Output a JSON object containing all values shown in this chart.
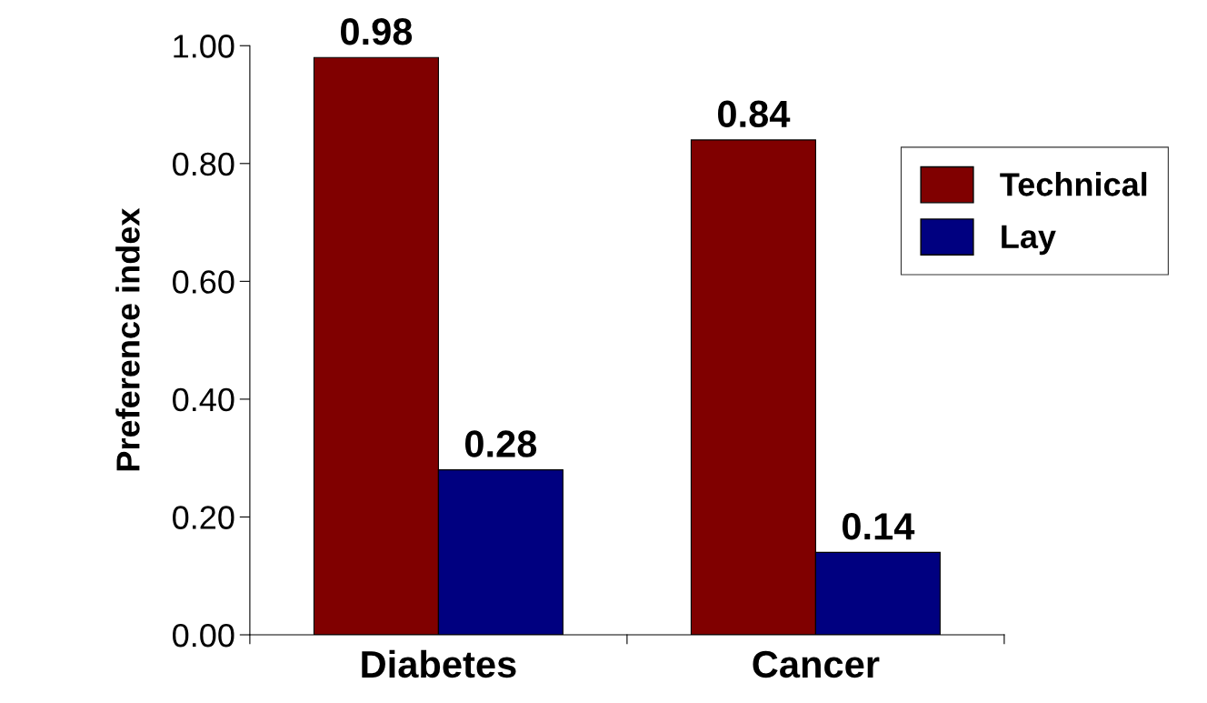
{
  "chart_data": {
    "type": "bar",
    "ylabel": "Preference index",
    "categories": [
      "Diabetes",
      "Cancer"
    ],
    "series": [
      {
        "name": "Technical",
        "color": "#800000",
        "values": [
          0.98,
          0.84
        ],
        "value_labels": [
          "0.98",
          "0.84"
        ]
      },
      {
        "name": "Lay",
        "color": "#000080",
        "values": [
          0.28,
          0.14
        ],
        "value_labels": [
          "0.28",
          "0.14"
        ]
      }
    ],
    "ylim": [
      0,
      1.0
    ],
    "yticks": [
      {
        "value": 0,
        "label": "0.00"
      },
      {
        "value": 0.2,
        "label": "0.20"
      },
      {
        "value": 0.4,
        "label": "0.40"
      },
      {
        "value": 0.6,
        "label": "0.60"
      },
      {
        "value": 0.8,
        "label": "0.80"
      },
      {
        "value": 1.0,
        "label": "1.00"
      }
    ],
    "grid": false,
    "legend": "right"
  }
}
